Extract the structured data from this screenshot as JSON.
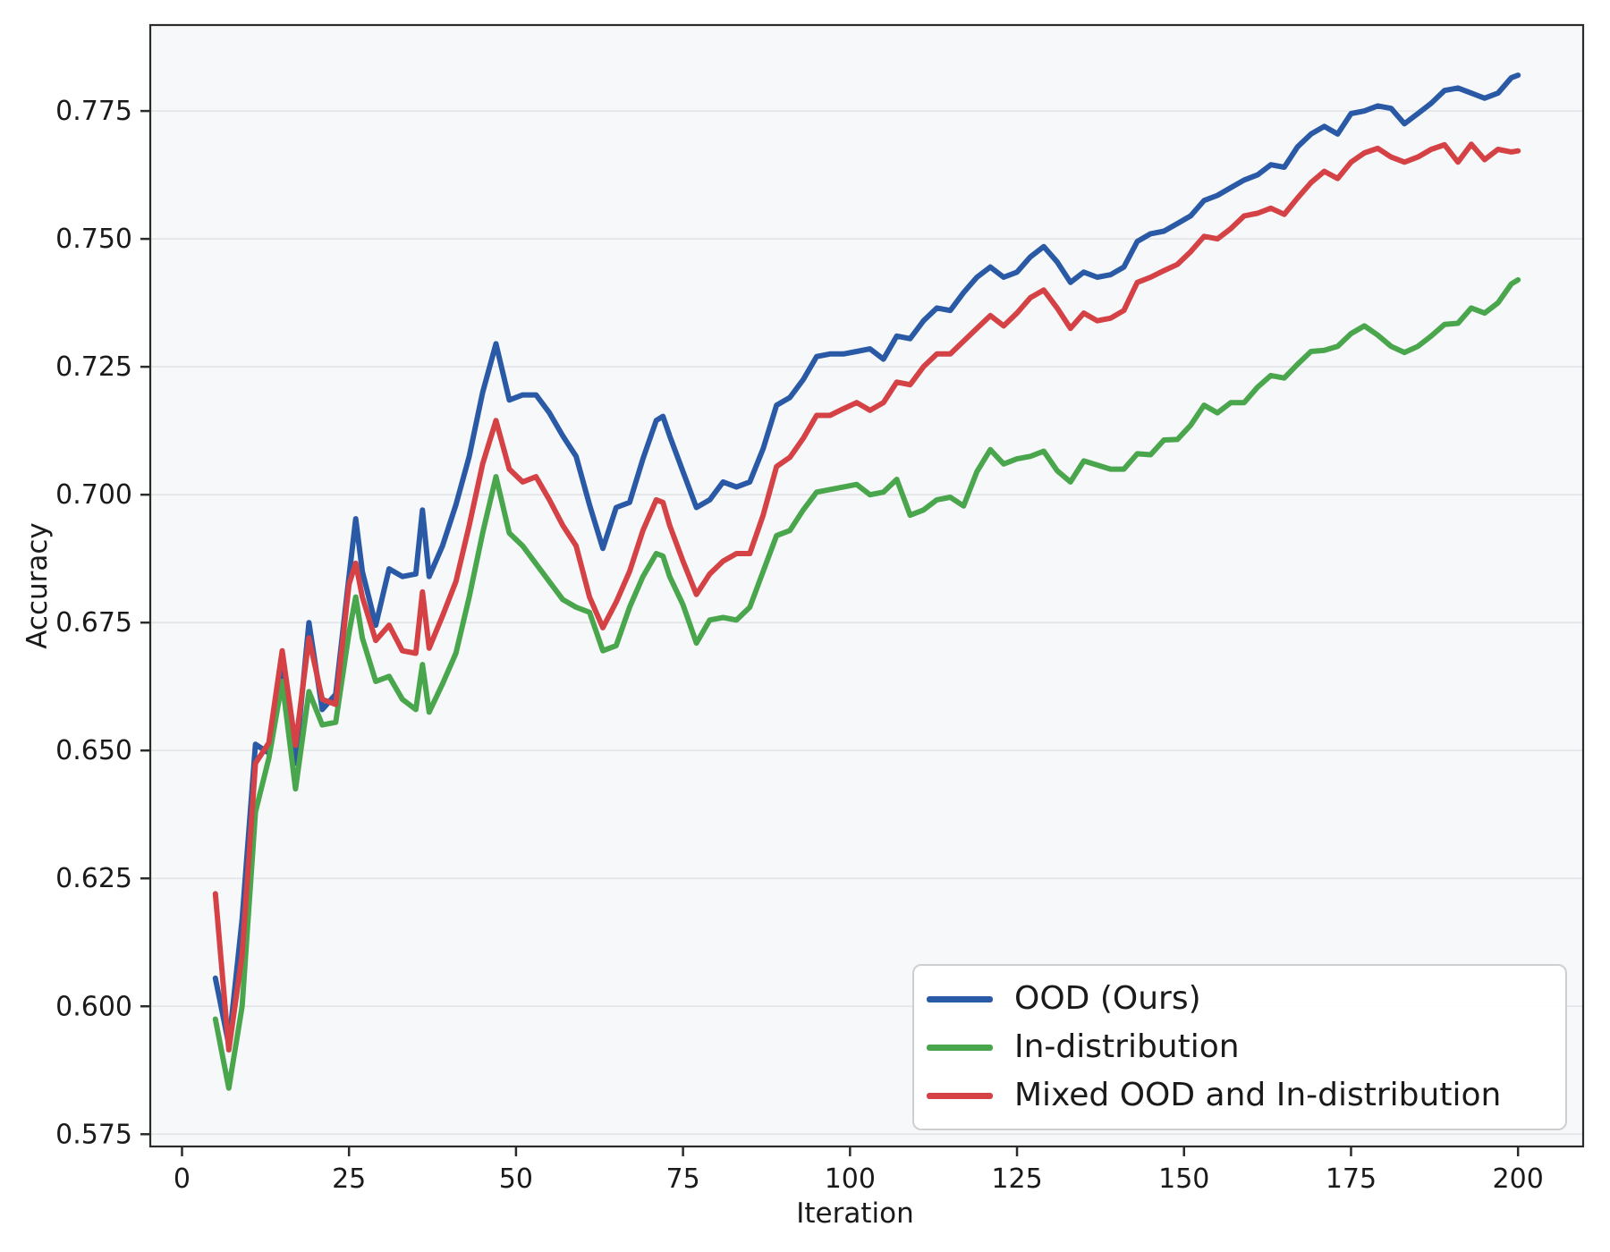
{
  "chart_data": {
    "type": "line",
    "title": "",
    "xlabel": "Iteration",
    "ylabel": "Accuracy",
    "xlim": [
      -4.75,
      209.75
    ],
    "ylim": [
      0.5726,
      0.7918
    ],
    "xticks": [
      0,
      25,
      50,
      75,
      100,
      125,
      150,
      175,
      200
    ],
    "xtick_labels": [
      "0",
      "25",
      "50",
      "75",
      "100",
      "125",
      "150",
      "175",
      "200"
    ],
    "yticks": [
      0.575,
      0.6,
      0.625,
      0.65,
      0.675,
      0.7,
      0.725,
      0.75,
      0.775
    ],
    "ytick_labels": [
      "0.575",
      "0.600",
      "0.625",
      "0.650",
      "0.675",
      "0.700",
      "0.725",
      "0.750",
      "0.775"
    ],
    "grid": "horizontal-only",
    "plot_background": "#f7f8fa",
    "grid_color": "#e4e5e8",
    "spine_color": "#2b2b2b",
    "text_color": "#1a1a1a",
    "legend_position": "lower right",
    "x": [
      5,
      7,
      9,
      11,
      13,
      15,
      17,
      19,
      21,
      23,
      25,
      26,
      27,
      29,
      31,
      33,
      35,
      36,
      37,
      39,
      41,
      43,
      45,
      47,
      49,
      51,
      53,
      55,
      57,
      59,
      61,
      63,
      65,
      67,
      69,
      71,
      72,
      73,
      75,
      77,
      79,
      81,
      83,
      85,
      87,
      89,
      91,
      93,
      95,
      97,
      99,
      101,
      103,
      105,
      107,
      109,
      111,
      113,
      115,
      117,
      119,
      121,
      123,
      125,
      127,
      129,
      131,
      133,
      135,
      137,
      139,
      141,
      143,
      145,
      147,
      149,
      151,
      153,
      155,
      157,
      159,
      161,
      163,
      165,
      167,
      169,
      171,
      173,
      175,
      177,
      179,
      181,
      183,
      185,
      187,
      189,
      191,
      193,
      195,
      197,
      199,
      200
    ],
    "series": [
      {
        "key": "ood",
        "name": "OOD (Ours)",
        "color": "#2a5aa6",
        "y": [
          0.6055,
          0.5925,
          0.617,
          0.6512,
          0.6495,
          0.666,
          0.6475,
          0.675,
          0.658,
          0.661,
          0.684,
          0.6953,
          0.685,
          0.6745,
          0.6855,
          0.684,
          0.6845,
          0.697,
          0.684,
          0.69,
          0.698,
          0.7075,
          0.72,
          0.7295,
          0.7185,
          0.7195,
          0.7195,
          0.716,
          0.7115,
          0.7075,
          0.698,
          0.6895,
          0.6975,
          0.6985,
          0.707,
          0.7145,
          0.7153,
          0.7115,
          0.7045,
          0.6975,
          0.699,
          0.7025,
          0.7015,
          0.7025,
          0.709,
          0.7175,
          0.719,
          0.7225,
          0.727,
          0.7275,
          0.7275,
          0.728,
          0.7285,
          0.7265,
          0.731,
          0.7305,
          0.734,
          0.7365,
          0.736,
          0.7395,
          0.7425,
          0.7445,
          0.7425,
          0.7435,
          0.7465,
          0.7485,
          0.7455,
          0.7415,
          0.7435,
          0.7425,
          0.743,
          0.7445,
          0.7495,
          0.751,
          0.7515,
          0.753,
          0.7545,
          0.7575,
          0.7585,
          0.76,
          0.7615,
          0.7625,
          0.7645,
          0.764,
          0.768,
          0.7705,
          0.772,
          0.7705,
          0.7745,
          0.775,
          0.776,
          0.7755,
          0.7725,
          0.7745,
          0.7765,
          0.779,
          0.7795,
          0.7785,
          0.7775,
          0.7785,
          0.7815,
          0.782
        ]
      },
      {
        "key": "in-distribution",
        "name": "In-distribution",
        "color": "#4aa64d",
        "y": [
          0.5975,
          0.584,
          0.6,
          0.638,
          0.6485,
          0.6635,
          0.6425,
          0.6615,
          0.655,
          0.6555,
          0.673,
          0.68,
          0.672,
          0.6635,
          0.6645,
          0.66,
          0.658,
          0.6668,
          0.6575,
          0.663,
          0.669,
          0.68,
          0.6925,
          0.7035,
          0.6925,
          0.69,
          0.6865,
          0.683,
          0.6795,
          0.678,
          0.677,
          0.6695,
          0.6705,
          0.678,
          0.684,
          0.6885,
          0.688,
          0.684,
          0.6785,
          0.671,
          0.6755,
          0.676,
          0.6755,
          0.678,
          0.685,
          0.692,
          0.693,
          0.697,
          0.7005,
          0.701,
          0.7015,
          0.702,
          0.7,
          0.7005,
          0.703,
          0.696,
          0.697,
          0.699,
          0.6995,
          0.6978,
          0.7045,
          0.7088,
          0.706,
          0.707,
          0.7075,
          0.7085,
          0.7047,
          0.7025,
          0.7066,
          0.7058,
          0.705,
          0.705,
          0.708,
          0.7078,
          0.7107,
          0.7108,
          0.7136,
          0.7175,
          0.716,
          0.718,
          0.718,
          0.721,
          0.7233,
          0.7228,
          0.7255,
          0.728,
          0.7282,
          0.729,
          0.7315,
          0.733,
          0.7312,
          0.729,
          0.7278,
          0.729,
          0.731,
          0.7333,
          0.7335,
          0.7365,
          0.7355,
          0.7375,
          0.7412,
          0.742
        ]
      },
      {
        "key": "mixed",
        "name": "Mixed OOD and In-distribution",
        "color": "#d44246",
        "y": [
          0.622,
          0.5915,
          0.61,
          0.6475,
          0.6515,
          0.6695,
          0.651,
          0.672,
          0.66,
          0.659,
          0.6825,
          0.6866,
          0.68,
          0.6715,
          0.6745,
          0.6695,
          0.669,
          0.681,
          0.67,
          0.6763,
          0.683,
          0.694,
          0.706,
          0.7145,
          0.705,
          0.7025,
          0.7035,
          0.699,
          0.694,
          0.69,
          0.68,
          0.674,
          0.679,
          0.685,
          0.693,
          0.699,
          0.6985,
          0.694,
          0.687,
          0.6805,
          0.6845,
          0.687,
          0.6885,
          0.6885,
          0.696,
          0.7055,
          0.7073,
          0.711,
          0.7155,
          0.7155,
          0.7168,
          0.718,
          0.7165,
          0.718,
          0.722,
          0.7215,
          0.725,
          0.7275,
          0.7275,
          0.73,
          0.7325,
          0.735,
          0.733,
          0.7355,
          0.7385,
          0.74,
          0.7365,
          0.7325,
          0.7355,
          0.734,
          0.7345,
          0.736,
          0.7415,
          0.7425,
          0.7438,
          0.745,
          0.7475,
          0.7505,
          0.75,
          0.752,
          0.7545,
          0.755,
          0.756,
          0.7548,
          0.758,
          0.761,
          0.7632,
          0.7618,
          0.765,
          0.7668,
          0.7677,
          0.766,
          0.765,
          0.766,
          0.7675,
          0.7684,
          0.765,
          0.7685,
          0.7655,
          0.7675,
          0.767,
          0.7672
        ]
      }
    ]
  }
}
